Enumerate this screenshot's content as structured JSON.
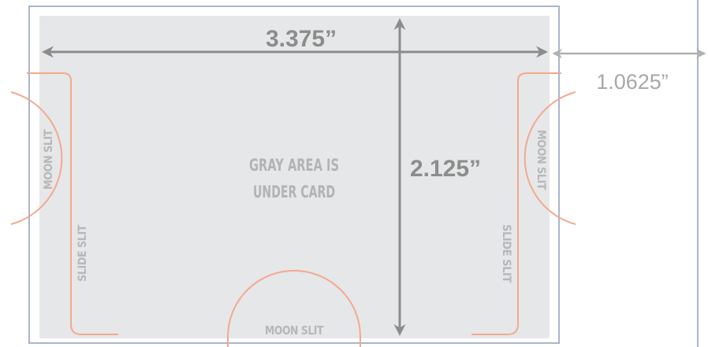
{
  "dimensions": {
    "width_label": "3.375”",
    "height_label": "2.125”",
    "margin_label": "1.0625”"
  },
  "labels": {
    "moon_slit_left": "MOON SLIT",
    "moon_slit_right": "MOON SLIT",
    "moon_slit_bottom": "MOON SLIT",
    "slide_slit_left": "SLIDE SLIT",
    "slide_slit_right": "SLIDE SLIT",
    "center_line1": "GRAY AREA IS",
    "center_line2": "UNDER CARD"
  },
  "colors": {
    "card_fill": "#e6e7e8",
    "outline": "#aab4cf",
    "slit": "#f4a98f",
    "arrow": "#8c8c8c",
    "arrow_light": "#b0b0b0"
  }
}
